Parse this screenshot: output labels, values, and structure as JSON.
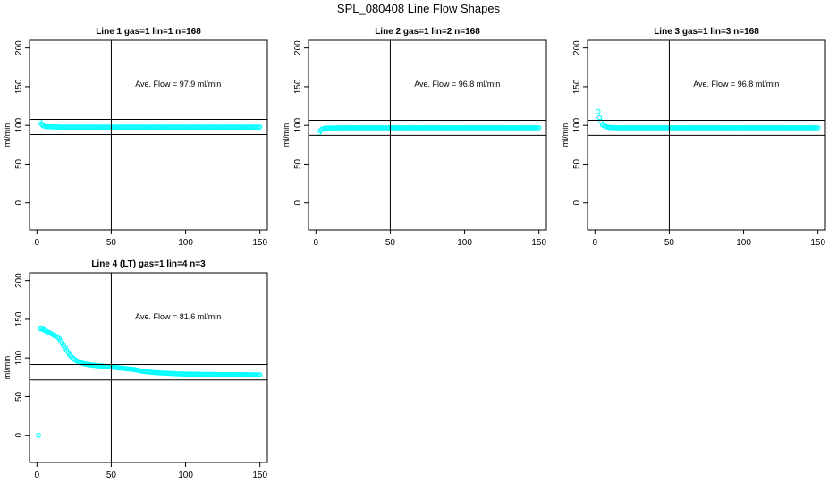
{
  "figure_title": "SPL_080408  Line Flow Shapes",
  "colors": {
    "points": "#00ffff",
    "lines": "#000000",
    "frame": "#000000"
  },
  "chart_data": [
    {
      "type": "scatter",
      "title": "Line 1 gas=1 lin=1 n=168",
      "ylabel": "ml/min",
      "xlim": [
        -5,
        155
      ],
      "ylim": [
        -35,
        210
      ],
      "xticks": [
        0,
        50,
        100,
        150
      ],
      "yticks": [
        0,
        50,
        100,
        150,
        200
      ],
      "annotation": "Ave. Flow =  97.9  ml/min",
      "hlines": [
        107.7,
        88.1
      ],
      "vline": 50,
      "series": {
        "start": 2,
        "end": 150,
        "values": [
          105,
          102,
          100,
          99,
          98.6,
          98.4,
          98.2,
          98.1,
          98,
          98,
          97.9,
          97.9,
          97.9,
          97.9,
          97.8,
          97.8,
          97.8,
          97.8,
          97.8,
          97.8,
          97.8,
          97.8,
          97.8,
          97.8,
          97.8,
          97.8,
          97.8,
          97.8,
          97.8,
          97.8,
          97.8,
          97.8,
          97.8,
          97.8,
          97.8,
          97.8,
          97.8,
          97.8,
          97.8,
          97.8,
          97.8,
          97.8,
          97.8,
          97.8,
          97.8,
          97.8,
          97.8,
          97.8,
          97.8,
          97.8,
          97.8,
          97.8,
          97.8,
          97.8,
          97.8,
          97.8,
          97.8,
          97.8,
          97.8,
          97.8,
          97.8,
          97.8,
          97.8,
          97.8,
          97.8,
          97.8,
          97.8,
          97.8,
          97.8,
          97.8,
          97.8,
          97.8,
          97.8,
          97.8,
          97.8,
          97.8,
          97.8,
          97.8,
          97.8,
          97.8,
          97.8,
          97.8,
          97.8,
          97.8,
          97.8,
          97.8,
          97.8,
          97.8,
          97.8,
          97.8,
          97.8,
          97.8,
          97.8,
          97.8,
          97.8,
          97.8,
          97.8,
          97.8,
          97.8,
          97.8,
          97.8,
          97.8,
          97.8,
          97.8,
          97.8,
          97.8,
          97.8,
          97.8,
          97.8,
          97.8,
          97.8,
          97.8,
          97.8,
          97.8,
          97.8,
          97.8,
          97.8,
          97.8,
          97.8,
          97.8,
          97.8,
          97.8,
          97.8,
          97.8,
          97.8,
          97.8,
          97.8,
          97.8,
          97.8,
          97.8,
          97.8,
          97.8,
          97.8,
          97.8,
          97.8,
          97.8,
          97.8,
          97.8,
          97.8,
          97.8,
          97.8,
          97.8,
          97.8,
          97.8,
          97.8,
          97.8,
          97.8,
          97.8,
          97.8,
          97.8,
          97.8,
          97.8
        ]
      }
    },
    {
      "type": "scatter",
      "title": "Line 2 gas=1 lin=2 n=168",
      "ylabel": "ml/min",
      "xlim": [
        -5,
        155
      ],
      "ylim": [
        -35,
        210
      ],
      "xticks": [
        0,
        50,
        100,
        150
      ],
      "yticks": [
        0,
        50,
        100,
        150,
        200
      ],
      "annotation": "Ave. Flow =  96.8  ml/min",
      "hlines": [
        106.5,
        87.1
      ],
      "vline": 50,
      "series": {
        "start": 2,
        "end": 150,
        "values": [
          90,
          93,
          95,
          95.8,
          96.2,
          96.4,
          96.5,
          96.6,
          96.6,
          96.7,
          96.7,
          96.7,
          96.7,
          96.8,
          96.8,
          96.8,
          96.8,
          96.8,
          96.8,
          96.8,
          96.8,
          96.8,
          96.8,
          96.8,
          96.8,
          96.8,
          96.8,
          96.8,
          96.8,
          96.8,
          96.8,
          96.8,
          96.8,
          96.8,
          96.8,
          96.8,
          96.8,
          96.8,
          96.8,
          96.8,
          96.8,
          96.8,
          96.8,
          96.8,
          96.8,
          96.8,
          96.8,
          96.8,
          96.8,
          96.8,
          96.8,
          96.8,
          96.8,
          96.8,
          96.8,
          96.8,
          96.8,
          96.8,
          96.8,
          96.8,
          96.8,
          96.8,
          96.8,
          96.8,
          96.8,
          96.8,
          96.8,
          96.8,
          96.8,
          96.8,
          96.8,
          96.8,
          96.8,
          96.8,
          96.8,
          96.8,
          96.8,
          96.8,
          96.8,
          96.8,
          96.8,
          96.8,
          96.8,
          96.8,
          96.8,
          96.8,
          96.8,
          96.8,
          96.8,
          96.8,
          96.8,
          96.8,
          96.8,
          96.8,
          96.8,
          96.8,
          96.8,
          96.8,
          96.8,
          96.8,
          96.8,
          96.8,
          96.8,
          96.8,
          96.8,
          96.8,
          96.8,
          96.8,
          96.8,
          96.8,
          96.8,
          96.8,
          96.8,
          96.8,
          96.8,
          96.8,
          96.8,
          96.8,
          96.8,
          96.8,
          96.8,
          96.8,
          96.8,
          96.8,
          96.8,
          96.8,
          96.8,
          96.8,
          96.8,
          96.8,
          96.8,
          96.8,
          96.8,
          96.8,
          96.8,
          96.8,
          96.8,
          96.8,
          96.8,
          96.8,
          96.8,
          96.8,
          96.8,
          96.8,
          96.8,
          96.8,
          96.8,
          96.8,
          96.8
        ]
      }
    },
    {
      "type": "scatter",
      "title": "Line 3 gas=1 lin=3 n=168",
      "ylabel": "ml/min",
      "xlim": [
        -5,
        155
      ],
      "ylim": [
        -35,
        210
      ],
      "xticks": [
        0,
        50,
        100,
        150
      ],
      "yticks": [
        0,
        50,
        100,
        150,
        200
      ],
      "annotation": "Ave. Flow =  96.8  ml/min",
      "hlines": [
        106.5,
        87.1
      ],
      "vline": 50,
      "series": {
        "start": 2,
        "end": 150,
        "values": [
          118,
          110,
          105,
          101,
          99.5,
          98.6,
          98,
          97.6,
          97.3,
          97.1,
          97,
          96.9,
          96.9,
          96.8,
          96.8,
          96.8,
          96.8,
          96.8,
          96.8,
          96.8,
          96.8,
          96.8,
          96.8,
          96.8,
          96.8,
          96.8,
          96.8,
          96.8,
          96.8,
          96.8,
          96.8,
          96.8,
          96.8,
          96.8,
          96.8,
          96.8,
          96.8,
          96.8,
          96.8,
          96.8,
          96.8,
          96.8,
          96.8,
          96.8,
          96.8,
          96.8,
          96.8,
          96.8,
          96.8,
          96.8,
          96.8,
          96.8,
          96.8,
          96.8,
          96.8,
          96.8,
          96.8,
          96.8,
          96.8,
          96.8,
          96.8,
          96.8,
          96.8,
          96.8,
          96.8,
          96.8,
          96.8,
          96.8,
          96.8,
          96.8,
          96.8,
          96.8,
          96.8,
          96.8,
          96.8,
          96.8,
          96.8,
          96.8,
          96.8,
          96.8,
          96.8,
          96.8,
          96.8,
          96.8,
          96.8,
          96.8,
          96.8,
          96.8,
          96.8,
          96.8,
          96.8,
          96.8,
          96.8,
          96.8,
          96.8,
          96.8,
          96.8,
          96.8,
          96.8,
          96.8,
          96.8,
          96.8,
          96.8,
          96.8,
          96.8,
          96.8,
          96.8,
          96.8,
          96.8,
          96.8,
          96.8,
          96.8,
          96.8,
          96.8,
          96.8,
          96.8,
          96.8,
          96.8,
          96.8,
          96.8,
          96.8,
          96.8,
          96.8,
          96.8,
          96.8,
          96.8,
          96.8,
          96.8,
          96.8,
          96.8,
          96.8,
          96.8,
          96.8,
          96.8,
          96.8,
          96.8,
          96.8,
          96.8,
          96.8,
          96.8,
          96.8,
          96.8,
          96.8,
          96.8,
          96.8,
          96.8,
          96.8,
          96.8,
          96.8
        ]
      }
    },
    {
      "type": "scatter",
      "title": "Line 4 (LT) gas=1 lin=4 n=3",
      "ylabel": "ml/min",
      "xlim": [
        -5,
        155
      ],
      "ylim": [
        -35,
        210
      ],
      "xticks": [
        0,
        50,
        100,
        150
      ],
      "yticks": [
        0,
        50,
        100,
        150,
        200
      ],
      "annotation": "Ave. Flow =  81.6  ml/min",
      "hlines": [
        91.6,
        71.6
      ],
      "vline": 50,
      "series": {
        "start": 1,
        "end": 150,
        "values": [
          0,
          138,
          138,
          137,
          136,
          135,
          134,
          133,
          132,
          131,
          130,
          129,
          128,
          127,
          125,
          122,
          119,
          116,
          113,
          110,
          107,
          104,
          102,
          100,
          98.5,
          97,
          96,
          95,
          94.3,
          93.6,
          93,
          92.5,
          92,
          91.6,
          91.3,
          91,
          90.8,
          90.6,
          90.4,
          90.2,
          90,
          89.8,
          89.6,
          89.4,
          89.2,
          89,
          88.8,
          88.6,
          88.4,
          88.2,
          88,
          87.8,
          87.6,
          87.4,
          87.2,
          87,
          86.8,
          86.6,
          86.4,
          86.2,
          86,
          85.8,
          85.6,
          85.4,
          85.2,
          85,
          84.5,
          84,
          83.6,
          83.2,
          82.9,
          82.6,
          82.4,
          82.2,
          82,
          81.8,
          81.6,
          81.4,
          81.2,
          81,
          80.9,
          80.8,
          80.7,
          80.6,
          80.5,
          80.4,
          80.3,
          80.2,
          80.1,
          80,
          79.9,
          79.8,
          79.7,
          79.6,
          79.5,
          79.5,
          79.4,
          79.4,
          79.3,
          79.3,
          79.2,
          79.2,
          79.1,
          79.1,
          79,
          79,
          79,
          79,
          78.9,
          78.9,
          78.9,
          78.9,
          78.8,
          78.8,
          78.8,
          78.8,
          78.7,
          78.7,
          78.7,
          78.7,
          78.6,
          78.6,
          78.6,
          78.6,
          78.5,
          78.5,
          78.5,
          78.5,
          78.5,
          78.5,
          78.4,
          78.4,
          78.4,
          78.4,
          78.4,
          78.4,
          78.3,
          78.3,
          78.3,
          78.3,
          78.3,
          78.3,
          78.3,
          78.3,
          78.2,
          78.2,
          78.2,
          78.2,
          78.2,
          78.2
        ]
      }
    }
  ]
}
